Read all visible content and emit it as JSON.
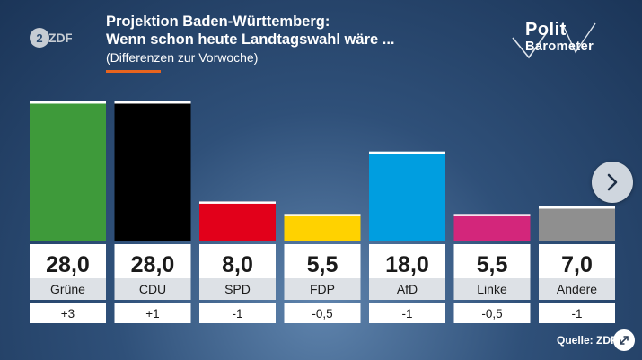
{
  "header": {
    "title_line1": "Projektion Baden-Württemberg:",
    "title_line2": "Wenn schon heute Landtagswahl wäre ...",
    "subtitle": "(Differenzen zur Vorwoche)"
  },
  "logos": {
    "broadcaster": "ZDF",
    "show_line1": "Polit",
    "show_line2": "Barometer"
  },
  "source": "Quelle: ZDF",
  "colors": {
    "accent": "#e8641e",
    "gruene": "#3e9a3a",
    "cdu": "#000000",
    "spd": "#e2001a",
    "fdp": "#ffd200",
    "afd": "#009ee0",
    "linke": "#d3267b",
    "andere": "#8f8f8f"
  },
  "chart_data": {
    "type": "bar",
    "categories": [
      "Grüne",
      "CDU",
      "SPD",
      "FDP",
      "AfD",
      "Linke",
      "Andere"
    ],
    "values": [
      28.0,
      28.0,
      8.0,
      5.5,
      18.0,
      5.5,
      7.0
    ],
    "value_labels": [
      "28,0",
      "28,0",
      "8,0",
      "5,5",
      "18,0",
      "5,5",
      "7,0"
    ],
    "changes": [
      "+3",
      "+1",
      "-1",
      "-0,5",
      "-1",
      "-0,5",
      "-1"
    ],
    "colors": [
      "#3e9a3a",
      "#000000",
      "#e2001a",
      "#ffd200",
      "#009ee0",
      "#d3267b",
      "#8f8f8f"
    ],
    "title": "Projektion Baden-Württemberg: Wenn schon heute Landtagswahl wäre ...",
    "subtitle": "(Differenzen zur Vorwoche)",
    "xlabel": "",
    "ylabel": "",
    "ylim": [
      0,
      28
    ],
    "grid": false,
    "legend": "none"
  }
}
